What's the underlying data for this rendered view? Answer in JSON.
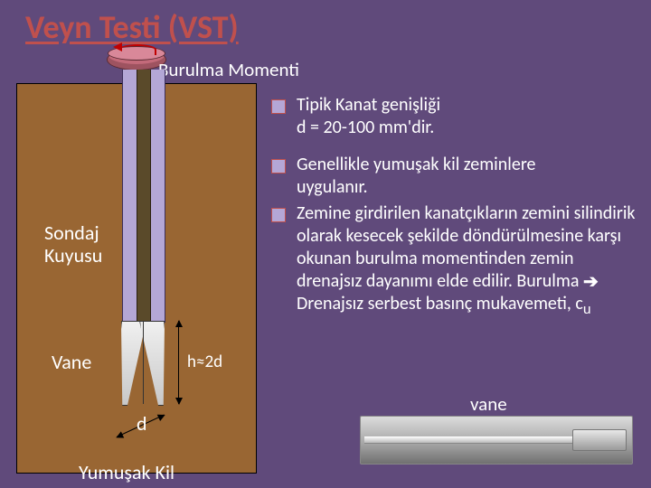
{
  "title": "Veyn Testi (VST)",
  "torque_label": "Burulma Momenti",
  "diagram": {
    "borehole_label": "Sondaj\nKuyusu",
    "vane_label": "Vane",
    "softclay_label": "Yumuşak Kil",
    "h_label": "h≈2d",
    "d_label": "d",
    "colors": {
      "soil": "#996633",
      "pipe_outer": "#b4a7d6",
      "pipe_inner": "#5a4a2a",
      "disk": "#c36a7a",
      "torque_arrow": "#c00000",
      "background": "#604a7b"
    }
  },
  "bullets": {
    "b1_line1": "Tipik Kanat genişliği",
    "b1_line2": "d = 20-100 mm'dir.",
    "b2_line1": "Genellikle yumuşak kil zeminlere",
    "b2_line2": " uygulanır.",
    "b3_text": "Zemine girdirilen kanatçıkların zemini silindirik olarak kesecek şekilde döndürülmesine karşı okunan burulma momentinden zemin drenajsız dayanımı elde edilir. Burulma ",
    "b3_after_arrow": " Drenajsız serbest basınç mukavemeti, c",
    "b3_sub": "u"
  },
  "photo_label": "vane"
}
